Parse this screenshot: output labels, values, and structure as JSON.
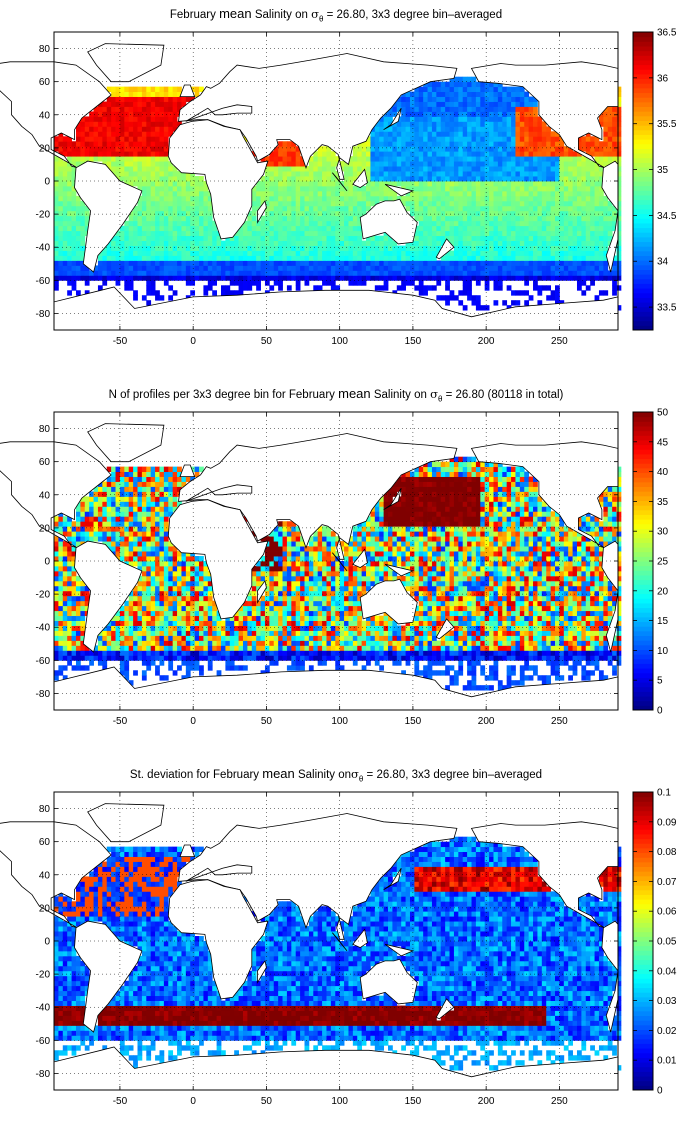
{
  "chart_data": [
    {
      "type": "heatmap",
      "title": {
        "pre": "February ",
        "mean": "mean",
        "mid": " Salinity on ",
        "sigma": "σ",
        "sub": "θ",
        "post": " = 26.80, 3x3 degree bin–averaged"
      },
      "xlim": [
        -95,
        290
      ],
      "ylim": [
        -90,
        90
      ],
      "xticks": [
        -50,
        0,
        50,
        100,
        150,
        200,
        250
      ],
      "yticks": [
        -80,
        -60,
        -40,
        -20,
        0,
        20,
        40,
        60,
        80
      ],
      "grid": true,
      "colorbar": {
        "min": 33.25,
        "max": 36.5,
        "ticks": [
          33.5,
          34,
          34.5,
          35,
          35.5,
          36,
          36.5
        ],
        "colormap": "jet",
        "position": "right"
      },
      "field": "salinity"
    },
    {
      "type": "heatmap",
      "title": {
        "pre": "N of profiles per 3x3 degree bin for February ",
        "mean": "mean",
        "mid": " Salinity on ",
        "sigma": "σ",
        "sub": "θ",
        "post": " = 26.80 (80118 in total)"
      },
      "xlim": [
        -95,
        290
      ],
      "ylim": [
        -90,
        90
      ],
      "xticks": [
        -50,
        0,
        50,
        100,
        150,
        200,
        250
      ],
      "yticks": [
        -80,
        -60,
        -40,
        -20,
        0,
        20,
        40,
        60,
        80
      ],
      "grid": true,
      "colorbar": {
        "min": 0,
        "max": 50,
        "ticks": [
          0,
          5,
          10,
          15,
          20,
          25,
          30,
          35,
          40,
          45,
          50
        ],
        "colormap": "jet",
        "position": "right"
      },
      "field": "count"
    },
    {
      "type": "heatmap",
      "title": {
        "pre": "St. deviation for February ",
        "mean": "mean",
        "mid": " Salinity on",
        "sigma": "σ",
        "sub": "θ",
        "post": " = 26.80, 3x3 degree bin–averaged"
      },
      "xlim": [
        -95,
        290
      ],
      "ylim": [
        -90,
        90
      ],
      "xticks": [
        -50,
        0,
        50,
        100,
        150,
        200,
        250
      ],
      "yticks": [
        -80,
        -60,
        -40,
        -20,
        0,
        20,
        40,
        60,
        80
      ],
      "grid": true,
      "colorbar": {
        "min": 0,
        "max": 0.1,
        "ticks": [
          0,
          0.01,
          0.02,
          0.03,
          0.04,
          0.05,
          0.06,
          0.07,
          0.08,
          0.09,
          0.1
        ],
        "colormap": "jet",
        "position": "right"
      },
      "field": "stdev"
    }
  ]
}
